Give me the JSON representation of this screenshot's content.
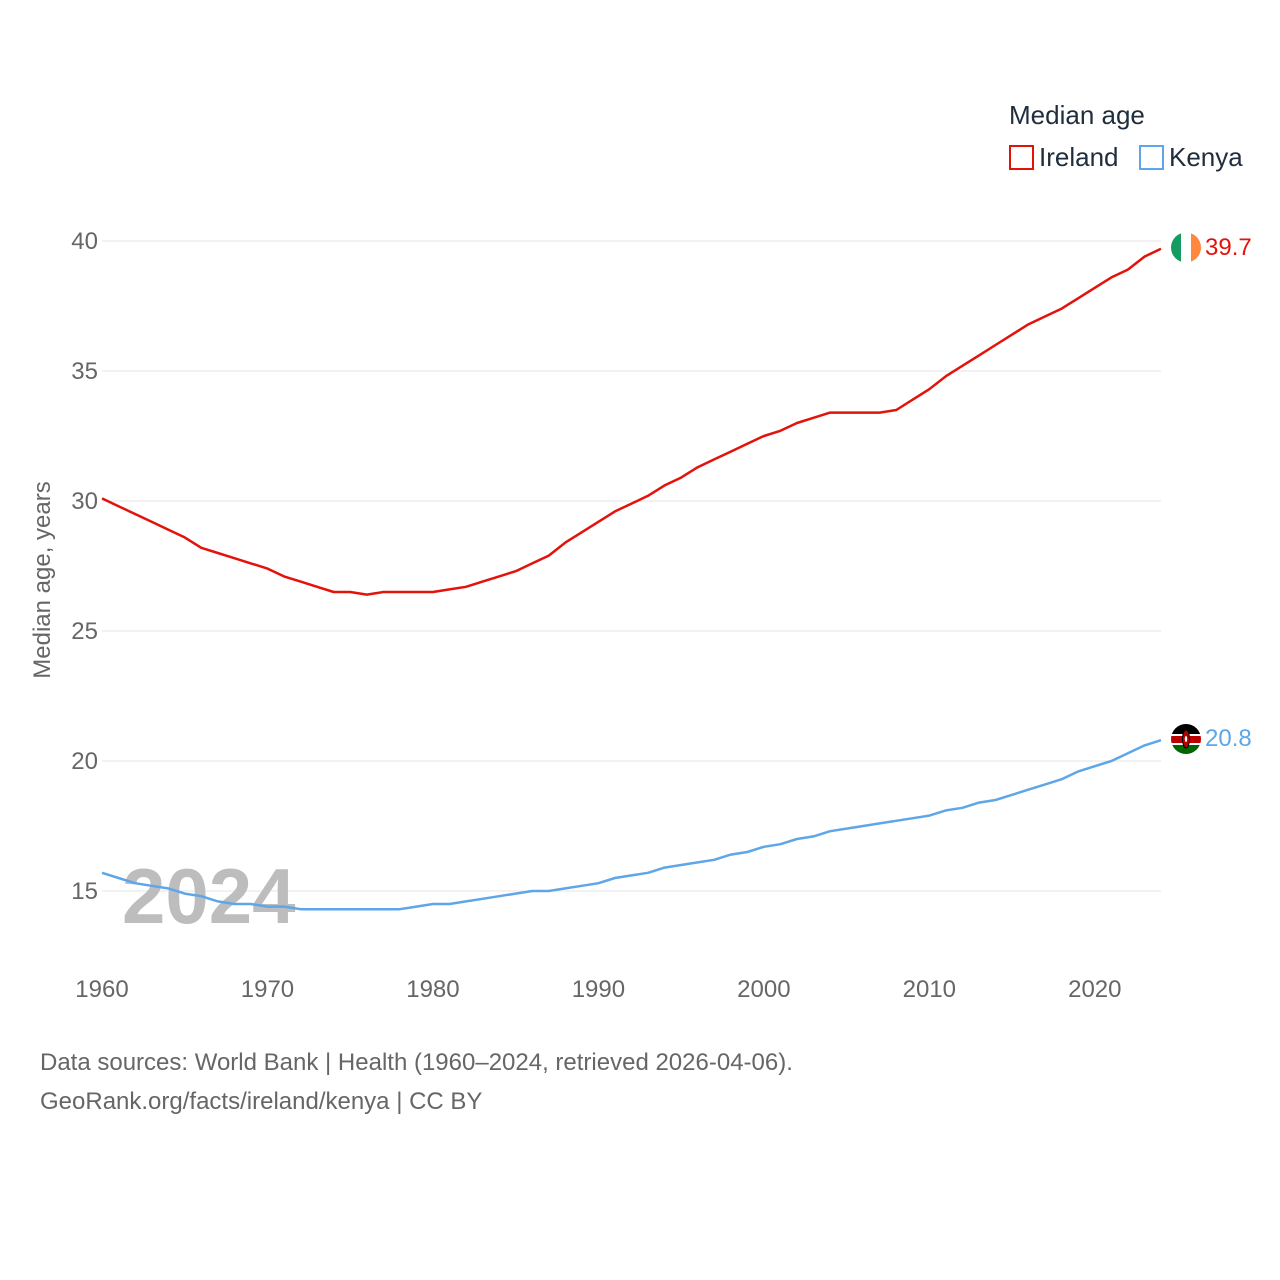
{
  "chart_data": {
    "type": "line",
    "title": "Median age",
    "ylabel": "Median age, years",
    "xlabel": "",
    "xlim": [
      1960,
      2024
    ],
    "ylim": [
      12.7,
      41.2
    ],
    "xticks": [
      1960,
      1970,
      1980,
      1990,
      2000,
      2010,
      2020
    ],
    "yticks": [
      15,
      20,
      25,
      30,
      35,
      40
    ],
    "grid": true,
    "legend_placement": "top-right",
    "highlight_year": "2024",
    "x": [
      1960,
      1961,
      1962,
      1963,
      1964,
      1965,
      1966,
      1967,
      1968,
      1969,
      1970,
      1971,
      1972,
      1973,
      1974,
      1975,
      1976,
      1977,
      1978,
      1979,
      1980,
      1981,
      1982,
      1983,
      1984,
      1985,
      1986,
      1987,
      1988,
      1989,
      1990,
      1991,
      1992,
      1993,
      1994,
      1995,
      1996,
      1997,
      1998,
      1999,
      2000,
      2001,
      2002,
      2003,
      2004,
      2005,
      2006,
      2007,
      2008,
      2009,
      2010,
      2011,
      2012,
      2013,
      2014,
      2015,
      2016,
      2017,
      2018,
      2019,
      2020,
      2021,
      2022,
      2023,
      2024
    ],
    "series": [
      {
        "name": "Ireland",
        "color": "#e3120b",
        "end_label": "39.7",
        "flag": "ireland-flag",
        "values": [
          30.1,
          29.8,
          29.5,
          29.2,
          28.9,
          28.6,
          28.2,
          28.0,
          27.8,
          27.6,
          27.4,
          27.1,
          26.9,
          26.7,
          26.5,
          26.5,
          26.4,
          26.5,
          26.5,
          26.5,
          26.5,
          26.6,
          26.7,
          26.9,
          27.1,
          27.3,
          27.6,
          27.9,
          28.4,
          28.8,
          29.2,
          29.6,
          29.9,
          30.2,
          30.6,
          30.9,
          31.3,
          31.6,
          31.9,
          32.2,
          32.5,
          32.7,
          33.0,
          33.2,
          33.4,
          33.4,
          33.4,
          33.4,
          33.5,
          33.9,
          34.3,
          34.8,
          35.2,
          35.6,
          36.0,
          36.4,
          36.8,
          37.1,
          37.4,
          37.8,
          38.2,
          38.6,
          38.9,
          39.4,
          39.7
        ]
      },
      {
        "name": "Kenya",
        "color": "#5fa6e8",
        "end_label": "20.8",
        "flag": "kenya-flag",
        "values": [
          15.7,
          15.5,
          15.3,
          15.2,
          15.1,
          14.9,
          14.8,
          14.6,
          14.5,
          14.5,
          14.4,
          14.4,
          14.3,
          14.3,
          14.3,
          14.3,
          14.3,
          14.3,
          14.3,
          14.4,
          14.5,
          14.5,
          14.6,
          14.7,
          14.8,
          14.9,
          15.0,
          15.0,
          15.1,
          15.2,
          15.3,
          15.5,
          15.6,
          15.7,
          15.9,
          16.0,
          16.1,
          16.2,
          16.4,
          16.5,
          16.7,
          16.8,
          17.0,
          17.1,
          17.3,
          17.4,
          17.5,
          17.6,
          17.7,
          17.8,
          17.9,
          18.1,
          18.2,
          18.4,
          18.5,
          18.7,
          18.9,
          19.1,
          19.3,
          19.6,
          19.8,
          20.0,
          20.3,
          20.6,
          20.8
        ]
      }
    ]
  },
  "footer": {
    "line1": "Data sources: World Bank | Health (1960–2024, retrieved 2026-04-06).",
    "line2": "GeoRank.org/facts/ireland/kenya | CC BY"
  }
}
